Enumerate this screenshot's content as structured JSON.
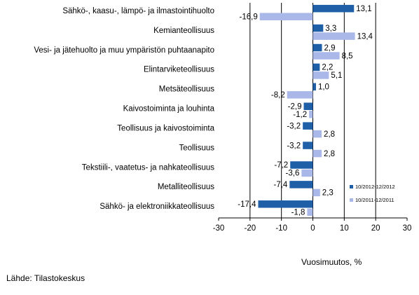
{
  "chart_data": {
    "type": "bar",
    "orientation": "horizontal",
    "categories": [
      "Sähkö-, kaasu-, lämpö- ja ilmastointihuolto",
      "Kemianteollisuus",
      "Vesi- ja jätehuolto ja muu ympäristön puhtaanapito",
      "Elintarviketeollisuus",
      "Metsäteollisuus",
      "Kaivostoiminta ja louhinta",
      "Teollisuus ja kaivostoiminta",
      "Teollisuus",
      "Tekstiili-, vaatetus- ja nahkateollisuus",
      "Metalliteollisuus",
      "Sähkö- ja elektroniikkateollisuus"
    ],
    "series": [
      {
        "name": "10/2012-12/2012",
        "color": "#1f5fa8",
        "values": [
          13.1,
          3.3,
          2.9,
          2.2,
          1.0,
          -2.9,
          -3.2,
          -3.2,
          -7.2,
          -7.4,
          -17.4
        ],
        "labels": [
          "13,1",
          "3,3",
          "2,9",
          "2,2",
          "1,0",
          "-2,9",
          "-3,2",
          "-3,2",
          "-7,2",
          "-7,4",
          "-17,4"
        ]
      },
      {
        "name": "10/2011-12/2011",
        "color": "#a9b8e8",
        "values": [
          -16.9,
          13.4,
          8.5,
          5.1,
          -8.2,
          -1.2,
          2.8,
          2.8,
          -3.6,
          2.3,
          -1.8
        ],
        "labels": [
          "-16,9",
          "13,4",
          "8,5",
          "5,1",
          "-8,2",
          "-1,2",
          "2,8",
          "2,8",
          "-3,6",
          "2,3",
          "-1,8"
        ]
      }
    ],
    "xlim": [
      -30,
      30
    ],
    "xticks": [
      -30,
      -20,
      -10,
      0,
      10,
      20,
      30
    ],
    "xtick_labels": [
      "-30",
      "-20",
      "-10",
      "0",
      "10",
      "20",
      "30"
    ],
    "xlabel": "Vuosimuutos, %",
    "grid": "vertical",
    "legend_position": "bottom-right"
  },
  "source_note": "Lähde: Tilastokeskus"
}
